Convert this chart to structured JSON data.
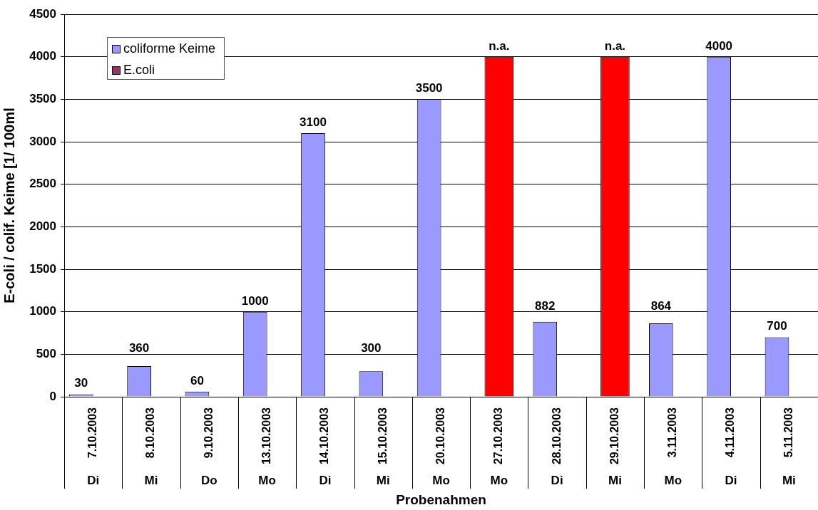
{
  "chart_data": {
    "type": "bar",
    "xlabel": "Probenahmen",
    "ylabel": "E-coli / colif. Keime [1/ 100ml",
    "categories": [
      "7.10.2003\nDi",
      "8.10.2003\nMi",
      "9.10.2003\nDo",
      "13.10.2003\nMo",
      "14.10.2003\nDi",
      "15.10.2003\nMi",
      "20.10.2003\nMo",
      "27.10.2003\nMo",
      "28.10.2003\nDi",
      "29.10.2003\nMi",
      "3.11.2003\nMo",
      "4.11.2003\nDi",
      "5.11.2003\nMi"
    ],
    "series": [
      {
        "name": "coliforme Keime",
        "color": "#9999ff",
        "values": [
          30,
          360,
          60,
          1000,
          3100,
          300,
          3500,
          null,
          882,
          null,
          864,
          4000,
          700
        ],
        "value_labels": [
          "30",
          "360",
          "60",
          "1000",
          "3100",
          "300",
          "3500",
          null,
          "882",
          null,
          "864",
          "4000",
          "700"
        ]
      },
      {
        "name": "E.coli",
        "color": "#993366",
        "values": [
          null,
          null,
          null,
          null,
          null,
          null,
          null,
          null,
          null,
          null,
          null,
          null,
          null
        ]
      },
      {
        "color": "#ff0000",
        "values": [
          null,
          null,
          null,
          null,
          null,
          null,
          null,
          4000,
          null,
          4000,
          null,
          null,
          null
        ],
        "value_labels": [
          null,
          null,
          null,
          null,
          null,
          null,
          null,
          "n.a.",
          null,
          "n.a.",
          null,
          null,
          null
        ]
      }
    ],
    "ylim": [
      0,
      4500
    ],
    "yticks": [
      0,
      500,
      1000,
      1500,
      2000,
      2500,
      3000,
      3500,
      4000,
      4500
    ],
    "grid": "y",
    "legend": "top left"
  }
}
